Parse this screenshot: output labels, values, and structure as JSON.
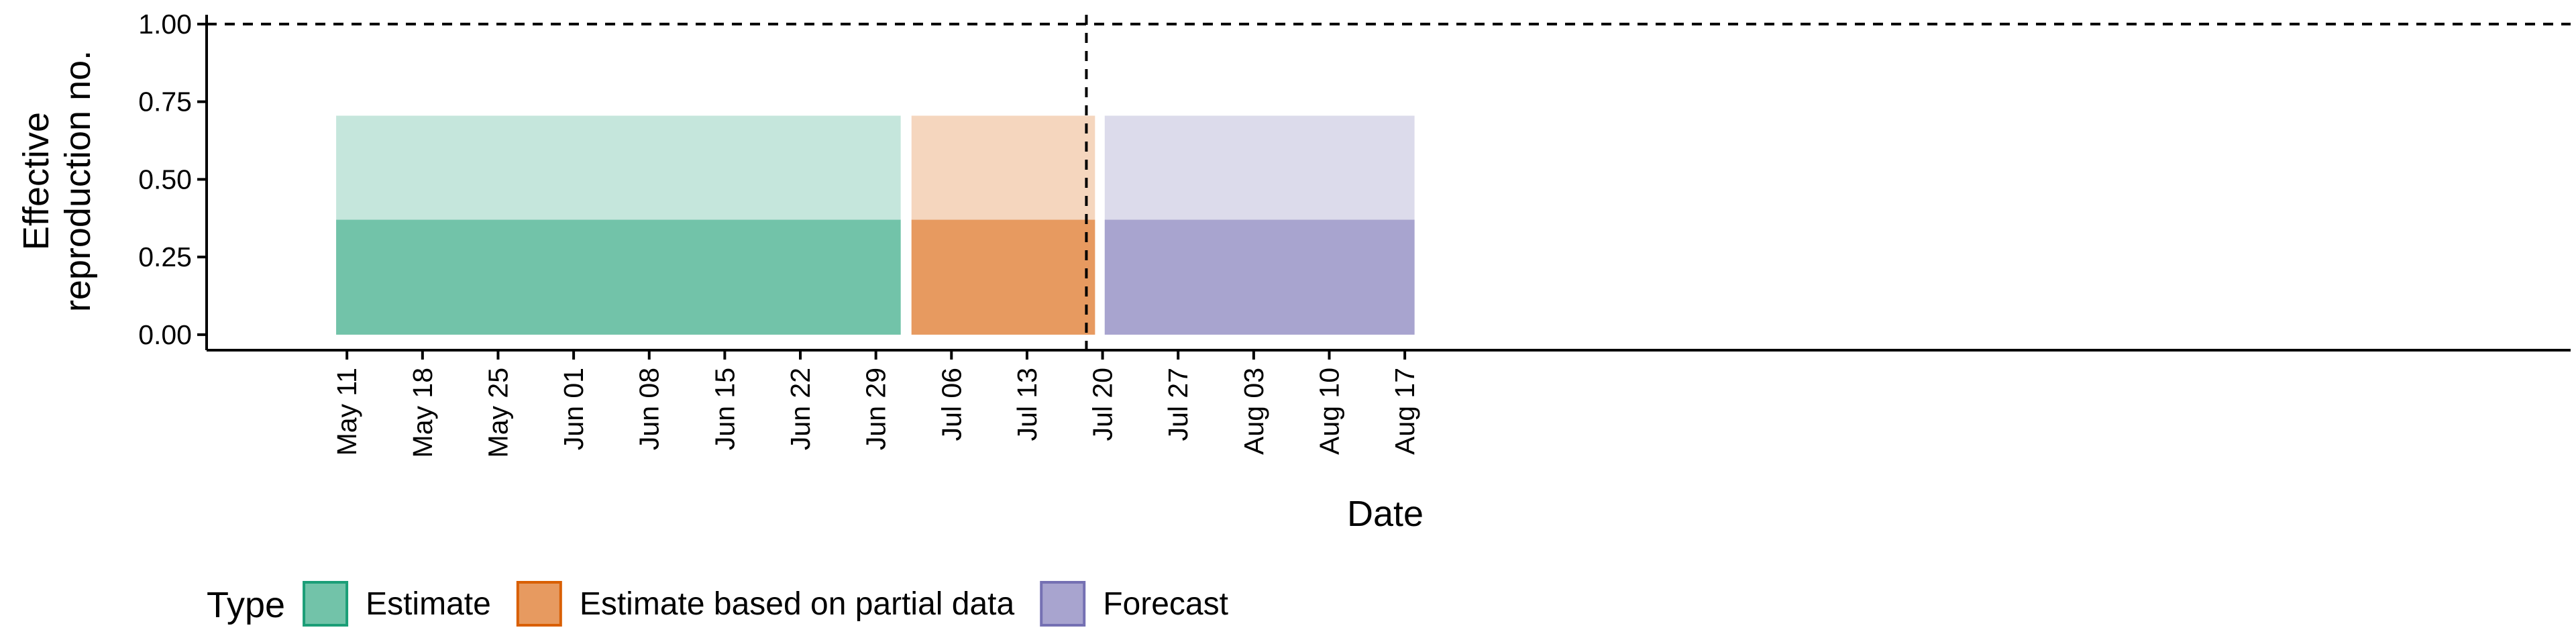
{
  "chart_data": {
    "type": "area",
    "xlabel": "Date",
    "ylabel_lines": [
      "Effective",
      "reproduction no."
    ],
    "ylim": [
      -0.05,
      1.03
    ],
    "y_ticks": [
      {
        "value": 0.0,
        "label": "0.00"
      },
      {
        "value": 0.25,
        "label": "0.25"
      },
      {
        "value": 0.5,
        "label": "0.50"
      },
      {
        "value": 0.75,
        "label": "0.75"
      },
      {
        "value": 1.0,
        "label": "1.00"
      }
    ],
    "x_range_days": [
      -13,
      206
    ],
    "x_ticks": [
      {
        "day": 0,
        "label": "May 11"
      },
      {
        "day": 7,
        "label": "May 18"
      },
      {
        "day": 14,
        "label": "May 25"
      },
      {
        "day": 21,
        "label": "Jun 01"
      },
      {
        "day": 28,
        "label": "Jun 08"
      },
      {
        "day": 35,
        "label": "Jun 15"
      },
      {
        "day": 42,
        "label": "Jun 22"
      },
      {
        "day": 49,
        "label": "Jun 29"
      },
      {
        "day": 56,
        "label": "Jul 06"
      },
      {
        "day": 63,
        "label": "Jul 13"
      },
      {
        "day": 70,
        "label": "Jul 20"
      },
      {
        "day": 77,
        "label": "Jul 27"
      },
      {
        "day": 84,
        "label": "Aug 03"
      },
      {
        "day": 91,
        "label": "Aug 10"
      },
      {
        "day": 98,
        "label": "Aug 17"
      }
    ],
    "reference_lines": {
      "horizontal_y": 1.0,
      "vertical_day": 68.5
    },
    "series": [
      {
        "name": "Estimate",
        "start_day": -1,
        "end_day": 51.3,
        "lower": 0.0,
        "upper_inner": 0.37,
        "upper_outer": 0.705,
        "inner_color": "#72c3a9",
        "outer_color": "#c5e6dc",
        "legend_fill": "#72c3a9",
        "legend_stroke": "#1b9e77"
      },
      {
        "name": "Estimate based on partial data",
        "start_day": 52.3,
        "end_day": 69.3,
        "lower": 0.0,
        "upper_inner": 0.37,
        "upper_outer": 0.705,
        "inner_color": "#e79a60",
        "outer_color": "#f5d6be",
        "legend_fill": "#e79a60",
        "legend_stroke": "#d95f02"
      },
      {
        "name": "Forecast",
        "start_day": 70.2,
        "end_day": 98.9,
        "lower": 0.0,
        "upper_inner": 0.37,
        "upper_outer": 0.705,
        "inner_color": "#a8a4cf",
        "outer_color": "#dcdbeb",
        "legend_fill": "#a8a4cf",
        "legend_stroke": "#7570b3"
      }
    ],
    "legend": {
      "title": "Type",
      "position": "bottom"
    }
  }
}
